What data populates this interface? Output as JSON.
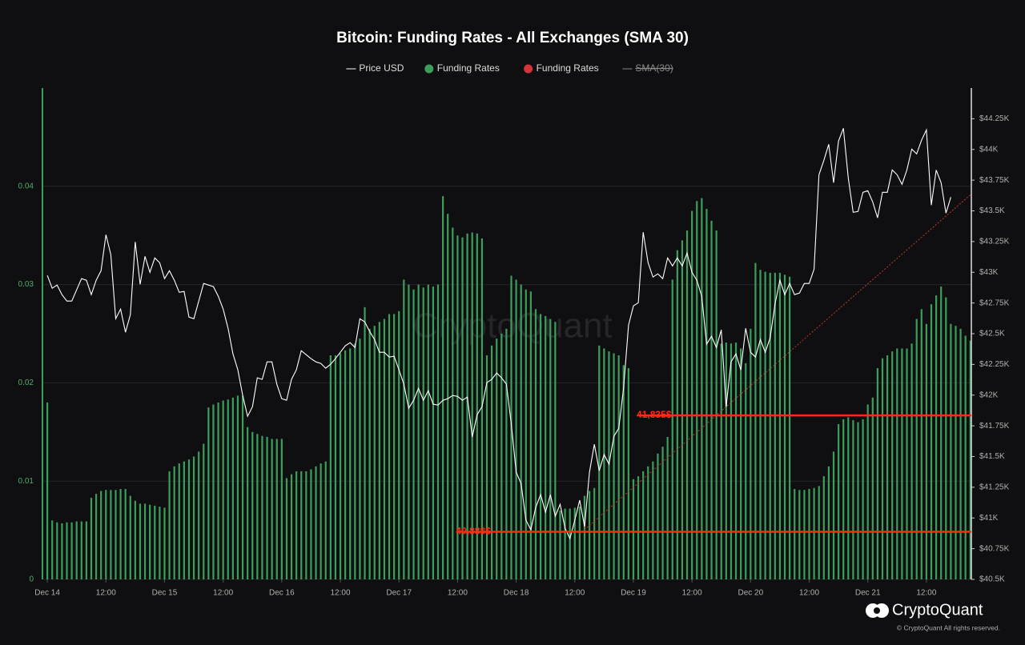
{
  "chart_data": {
    "type": "bar",
    "title": "Bitcoin: Funding Rates - All Exchanges (SMA 30)",
    "x": [
      0,
      1,
      2,
      3,
      4,
      5,
      6,
      7,
      8,
      9,
      10,
      11,
      12,
      13,
      14,
      15,
      16,
      17,
      18,
      19,
      20,
      21,
      22,
      23,
      24,
      25,
      26,
      27,
      28,
      29,
      30,
      31,
      32,
      33,
      34,
      35,
      36,
      37,
      38,
      39,
      40,
      41,
      42,
      43,
      44,
      45,
      46,
      47,
      48,
      49,
      50,
      51,
      52,
      53,
      54,
      55,
      56,
      57,
      58,
      59,
      60,
      61,
      62,
      63,
      64,
      65,
      66,
      67,
      68,
      69,
      70,
      71,
      72,
      73,
      74,
      75,
      76,
      77,
      78,
      79,
      80,
      81,
      82,
      83,
      84,
      85,
      86,
      87,
      88,
      89,
      90,
      91,
      92,
      93,
      94,
      95,
      96,
      97,
      98,
      99,
      100,
      101,
      102,
      103,
      104,
      105,
      106,
      107,
      108,
      109,
      110,
      111,
      112,
      113,
      114,
      115,
      116,
      117,
      118,
      119,
      120,
      121,
      122,
      123,
      124,
      125,
      126,
      127,
      128,
      129,
      130,
      131,
      132,
      133,
      134,
      135,
      136,
      137,
      138,
      139,
      140,
      141,
      142,
      143,
      144,
      145,
      146,
      147,
      148,
      149,
      150,
      151,
      152,
      153,
      154,
      155,
      156,
      157,
      158,
      159,
      160,
      161,
      162,
      163,
      164,
      165,
      166,
      167,
      168,
      169,
      170,
      171,
      172,
      173,
      174,
      175,
      176,
      177,
      178,
      179,
      180,
      181,
      182,
      183,
      184,
      185,
      186,
      187,
      188,
      189
    ],
    "xlim": [
      -1,
      189.2
    ],
    "xticks": [
      {
        "value": 0,
        "label": "Dec 14"
      },
      {
        "value": 12,
        "label": "12:00"
      },
      {
        "value": 24,
        "label": "Dec 15"
      },
      {
        "value": 36,
        "label": "12:00"
      },
      {
        "value": 48,
        "label": "Dec 16"
      },
      {
        "value": 60,
        "label": "12:00"
      },
      {
        "value": 72,
        "label": "Dec 17"
      },
      {
        "value": 84,
        "label": "12:00"
      },
      {
        "value": 96,
        "label": "Dec 18"
      },
      {
        "value": 108,
        "label": "12:00"
      },
      {
        "value": 120,
        "label": "Dec 19"
      },
      {
        "value": 132,
        "label": "12:00"
      },
      {
        "value": 144,
        "label": "Dec 20"
      },
      {
        "value": 156,
        "label": "12:00"
      },
      {
        "value": 168,
        "label": "Dec 21"
      },
      {
        "value": 180,
        "label": "12:00"
      }
    ],
    "ylim": [
      0,
      0.05
    ],
    "yticks": [
      0,
      0.01,
      0.02,
      0.03,
      0.04
    ],
    "y2lim": [
      40500,
      44500
    ],
    "y2ticks": [
      {
        "value": 40500,
        "label": "$40.5K"
      },
      {
        "value": 40750,
        "label": "$40.75K"
      },
      {
        "value": 41000,
        "label": "$41K"
      },
      {
        "value": 41250,
        "label": "$41.25K"
      },
      {
        "value": 41500,
        "label": "$41.5K"
      },
      {
        "value": 41750,
        "label": "$41.75K"
      },
      {
        "value": 42000,
        "label": "$42K"
      },
      {
        "value": 42250,
        "label": "$42.25K"
      },
      {
        "value": 42500,
        "label": "$42.5K"
      },
      {
        "value": 42750,
        "label": "$42.75K"
      },
      {
        "value": 43000,
        "label": "$43K"
      },
      {
        "value": 43250,
        "label": "$43.25K"
      },
      {
        "value": 43500,
        "label": "$43.5K"
      },
      {
        "value": 43750,
        "label": "$43.75K"
      },
      {
        "value": 44000,
        "label": "$44K"
      },
      {
        "value": 44250,
        "label": "$44.25K"
      }
    ],
    "grid": true,
    "series": [
      {
        "name": "Price USD",
        "type": "line",
        "axis": "y2",
        "color": "#ffffff",
        "values": [
          42974,
          42870,
          42896,
          42818,
          42766,
          42766,
          42857,
          42948,
          42935,
          42818,
          42935,
          43013,
          43306,
          43143,
          42622,
          42700,
          42512,
          42655,
          43247,
          42902,
          43130,
          43000,
          43117,
          43078,
          42948,
          43013,
          42935,
          42837,
          42844,
          42635,
          42622,
          42766,
          42909,
          42896,
          42883,
          42805,
          42700,
          42544,
          42336,
          42206,
          41997,
          41828,
          41906,
          42141,
          42128,
          42271,
          42271,
          42089,
          41971,
          41958,
          42128,
          42206,
          42362,
          42329,
          42297,
          42271,
          42258,
          42219,
          42251,
          42297,
          42349,
          42401,
          42427,
          42388,
          42622,
          42596,
          42518,
          42453,
          42349,
          42349,
          42310,
          42317,
          42206,
          42089,
          41893,
          41958,
          42056,
          41958,
          42036,
          41926,
          41919,
          41958,
          41971,
          41997,
          41990,
          41958,
          41984,
          41659,
          41841,
          41906,
          42102,
          42128,
          42180,
          42141,
          42089,
          41763,
          41372,
          41281,
          40982,
          40904,
          41086,
          41190,
          41047,
          41190,
          41014,
          41112,
          40917,
          40832,
          40982,
          41145,
          40930,
          41372,
          41600,
          41385,
          41516,
          41438,
          41665,
          41730,
          42063,
          42570,
          42727,
          42752,
          43326,
          43078,
          42961,
          42987,
          42948,
          43117,
          43052,
          43117,
          43052,
          43156,
          43000,
          42935,
          42805,
          42414,
          42479,
          42388,
          42531,
          41906,
          42271,
          42336,
          42206,
          42544,
          42349,
          42310,
          42453,
          42349,
          42466,
          42740,
          42935,
          42818,
          42909,
          42818,
          42831,
          42909,
          42909,
          43026,
          43794,
          43911,
          44042,
          43729,
          44068,
          44172,
          43768,
          43488,
          43495,
          43651,
          43664,
          43573,
          43443,
          43651,
          43651,
          43833,
          43794,
          43716,
          43833,
          44003,
          43964,
          44075,
          44159,
          43547,
          43833,
          43729,
          43482,
          43612,
          null,
          null,
          null,
          null
        ]
      },
      {
        "name": "Funding Rates",
        "type": "bar",
        "color": "#3c9e5b",
        "values": [
          0.018,
          0.006,
          0.0058,
          0.0057,
          0.0058,
          0.0058,
          0.0059,
          0.0059,
          0.0059,
          0.0083,
          0.0087,
          0.009,
          0.0091,
          0.0091,
          0.0091,
          0.0092,
          0.0092,
          0.0085,
          0.008,
          0.0077,
          0.0077,
          0.0076,
          0.0075,
          0.0074,
          0.0073,
          0.011,
          0.0115,
          0.0118,
          0.012,
          0.0122,
          0.0125,
          0.013,
          0.0138,
          0.0175,
          0.0178,
          0.018,
          0.0182,
          0.0183,
          0.0185,
          0.0187,
          0.0187,
          0.0155,
          0.015,
          0.0148,
          0.0146,
          0.0145,
          0.0143,
          0.0143,
          0.0143,
          0.0103,
          0.0107,
          0.011,
          0.011,
          0.011,
          0.0112,
          0.0115,
          0.0118,
          0.012,
          0.0228,
          0.0228,
          0.023,
          0.0233,
          0.0235,
          0.024,
          0.0245,
          0.0277,
          0.0255,
          0.0258,
          0.0262,
          0.0265,
          0.027,
          0.027,
          0.0273,
          0.0305,
          0.03,
          0.0295,
          0.03,
          0.0297,
          0.03,
          0.0298,
          0.03,
          0.039,
          0.0372,
          0.0358,
          0.035,
          0.0348,
          0.0352,
          0.0353,
          0.0352,
          0.0347,
          0.0228,
          0.0238,
          0.0245,
          0.025,
          0.0255,
          0.0309,
          0.0305,
          0.03,
          0.0295,
          0.0293,
          0.0275,
          0.027,
          0.0268,
          0.0265,
          0.0262,
          0.007,
          0.0072,
          0.0072,
          0.0073,
          0.0074,
          0.0085,
          0.009,
          0.0093,
          0.0238,
          0.0235,
          0.0232,
          0.023,
          0.0228,
          0.0218,
          0.0215,
          0.0102,
          0.0105,
          0.011,
          0.0115,
          0.012,
          0.0128,
          0.0135,
          0.0145,
          0.0305,
          0.0335,
          0.0345,
          0.0355,
          0.0375,
          0.0385,
          0.0388,
          0.0377,
          0.0365,
          0.0355,
          0.024,
          0.0241,
          0.024,
          0.0241,
          0.0235,
          0.022,
          0.0255,
          0.0322,
          0.0315,
          0.0313,
          0.0312,
          0.0312,
          0.0312,
          0.031,
          0.0308,
          0.0092,
          0.0091,
          0.0091,
          0.0092,
          0.0093,
          0.0095,
          0.0105,
          0.0115,
          0.013,
          0.0158,
          0.0163,
          0.0165,
          0.0162,
          0.016,
          0.0163,
          0.0178,
          0.0185,
          0.0215,
          0.0225,
          0.0228,
          0.0232,
          0.0235,
          0.0235,
          0.0235,
          0.024,
          0.0265,
          0.0275,
          0.026,
          0.028,
          0.0289,
          0.0298,
          0.0287,
          0.026,
          0.0258,
          0.0255,
          0.0248,
          0.0243
        ]
      }
    ],
    "legend_extra": [
      {
        "name": "Funding Rates",
        "color": "#d8333a"
      },
      {
        "name": "SMA(30)",
        "color": "#8a8a8a",
        "hidden": true
      }
    ],
    "trendline": {
      "color": "#c0392b",
      "x": [
        109,
        189
      ],
      "y": [
        40870,
        43630
      ]
    },
    "hlines": [
      {
        "label": "41,835$",
        "value": 41835,
        "x": 121,
        "color": "#ff2a12"
      },
      {
        "label": "40,888$",
        "value": 40888,
        "x": 84,
        "color": "#ff2a12"
      }
    ],
    "watermark": "CryptoQuant"
  },
  "branding": {
    "logo": "CryptoQuant",
    "copyright": "© CryptoQuant All rights reserved."
  }
}
